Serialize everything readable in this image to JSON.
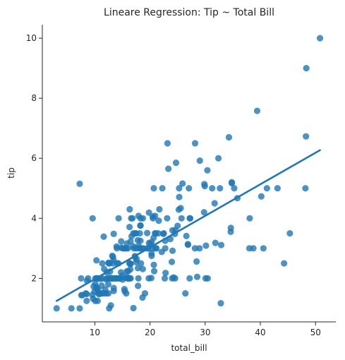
{
  "chart_data": {
    "type": "scatter",
    "title": "Lineare Regression: Tip ~ Total Bill",
    "xlabel": "total_bill",
    "ylabel": "tip",
    "xlim": [
      0.48,
      53.68
    ],
    "ylim": [
      0.55,
      10.45
    ],
    "xticks": [
      10,
      20,
      30,
      40,
      50
    ],
    "yticks": [
      2,
      4,
      6,
      8,
      10
    ],
    "grid": false,
    "colors": {
      "points": "#1f77b4",
      "line": "#1f77b4",
      "axis": "#262626"
    },
    "regression_line": {
      "x": [
        3.07,
        50.81
      ],
      "y": [
        1.25,
        6.27
      ]
    },
    "points": [
      [
        16.99,
        1.01
      ],
      [
        10.34,
        1.66
      ],
      [
        21.01,
        3.5
      ],
      [
        23.68,
        3.31
      ],
      [
        24.59,
        3.61
      ],
      [
        25.29,
        4.71
      ],
      [
        8.77,
        2.0
      ],
      [
        26.88,
        3.12
      ],
      [
        15.04,
        1.96
      ],
      [
        14.78,
        3.23
      ],
      [
        10.27,
        1.71
      ],
      [
        35.26,
        5.0
      ],
      [
        15.42,
        1.57
      ],
      [
        18.43,
        3.0
      ],
      [
        14.83,
        3.02
      ],
      [
        21.58,
        3.92
      ],
      [
        10.33,
        1.67
      ],
      [
        16.29,
        3.71
      ],
      [
        16.97,
        3.5
      ],
      [
        20.65,
        3.35
      ],
      [
        17.92,
        4.08
      ],
      [
        20.29,
        2.75
      ],
      [
        15.77,
        2.23
      ],
      [
        39.42,
        7.58
      ],
      [
        19.82,
        3.18
      ],
      [
        17.81,
        2.34
      ],
      [
        13.37,
        2.0
      ],
      [
        12.69,
        2.0
      ],
      [
        21.7,
        4.3
      ],
      [
        19.65,
        3.0
      ],
      [
        9.55,
        1.45
      ],
      [
        18.35,
        2.5
      ],
      [
        15.06,
        3.0
      ],
      [
        20.69,
        2.45
      ],
      [
        17.78,
        3.27
      ],
      [
        24.06,
        3.6
      ],
      [
        16.31,
        2.0
      ],
      [
        16.93,
        3.07
      ],
      [
        18.69,
        2.31
      ],
      [
        31.27,
        5.0
      ],
      [
        16.04,
        2.24
      ],
      [
        17.46,
        2.54
      ],
      [
        13.94,
        3.06
      ],
      [
        9.68,
        1.32
      ],
      [
        30.4,
        5.6
      ],
      [
        18.29,
        3.0
      ],
      [
        22.23,
        5.0
      ],
      [
        32.4,
        6.0
      ],
      [
        28.55,
        2.05
      ],
      [
        18.04,
        3.0
      ],
      [
        12.54,
        2.5
      ],
      [
        10.29,
        2.6
      ],
      [
        34.81,
        5.2
      ],
      [
        9.94,
        1.56
      ],
      [
        25.56,
        4.34
      ],
      [
        19.49,
        3.51
      ],
      [
        38.01,
        3.0
      ],
      [
        26.41,
        1.5
      ],
      [
        11.24,
        1.76
      ],
      [
        48.27,
        6.73
      ],
      [
        20.29,
        3.21
      ],
      [
        13.81,
        2.0
      ],
      [
        11.02,
        1.98
      ],
      [
        18.29,
        3.76
      ],
      [
        17.59,
        2.64
      ],
      [
        20.08,
        3.15
      ],
      [
        16.45,
        2.47
      ],
      [
        3.07,
        1.0
      ],
      [
        20.23,
        2.01
      ],
      [
        15.01,
        2.09
      ],
      [
        12.02,
        1.97
      ],
      [
        17.07,
        3.0
      ],
      [
        26.86,
        3.14
      ],
      [
        25.28,
        5.0
      ],
      [
        14.73,
        2.2
      ],
      [
        10.51,
        1.25
      ],
      [
        17.92,
        3.08
      ],
      [
        27.2,
        4.0
      ],
      [
        22.76,
        3.0
      ],
      [
        17.29,
        2.71
      ],
      [
        19.44,
        3.0
      ],
      [
        16.66,
        3.4
      ],
      [
        10.07,
        1.83
      ],
      [
        32.68,
        5.0
      ],
      [
        15.98,
        2.03
      ],
      [
        34.83,
        5.17
      ],
      [
        13.03,
        2.0
      ],
      [
        18.28,
        4.0
      ],
      [
        24.71,
        5.85
      ],
      [
        21.16,
        3.0
      ],
      [
        28.97,
        3.0
      ],
      [
        22.49,
        3.5
      ],
      [
        5.75,
        1.0
      ],
      [
        16.32,
        4.3
      ],
      [
        22.75,
        3.25
      ],
      [
        40.17,
        4.73
      ],
      [
        27.28,
        4.0
      ],
      [
        12.03,
        1.5
      ],
      [
        21.01,
        3.0
      ],
      [
        12.46,
        1.5
      ],
      [
        11.35,
        2.5
      ],
      [
        15.38,
        3.0
      ],
      [
        44.3,
        2.5
      ],
      [
        22.42,
        3.48
      ],
      [
        20.92,
        4.08
      ],
      [
        15.36,
        1.64
      ],
      [
        20.49,
        4.06
      ],
      [
        25.21,
        4.29
      ],
      [
        18.24,
        3.76
      ],
      [
        14.31,
        4.0
      ],
      [
        14.0,
        3.0
      ],
      [
        7.25,
        1.0
      ],
      [
        38.07,
        4.0
      ],
      [
        23.95,
        2.55
      ],
      [
        25.71,
        4.0
      ],
      [
        17.31,
        3.5
      ],
      [
        29.93,
        5.07
      ],
      [
        10.65,
        1.5
      ],
      [
        12.43,
        1.8
      ],
      [
        24.08,
        2.92
      ],
      [
        11.69,
        2.31
      ],
      [
        13.42,
        1.68
      ],
      [
        14.26,
        2.5
      ],
      [
        15.95,
        2.0
      ],
      [
        12.48,
        2.52
      ],
      [
        29.8,
        4.2
      ],
      [
        8.52,
        1.48
      ],
      [
        14.52,
        2.0
      ],
      [
        11.38,
        2.0
      ],
      [
        22.82,
        2.18
      ],
      [
        19.08,
        1.5
      ],
      [
        20.27,
        2.83
      ],
      [
        11.17,
        1.5
      ],
      [
        12.26,
        2.0
      ],
      [
        18.26,
        3.25
      ],
      [
        8.51,
        1.25
      ],
      [
        10.33,
        2.0
      ],
      [
        14.15,
        2.0
      ],
      [
        16.0,
        2.0
      ],
      [
        13.16,
        2.75
      ],
      [
        17.47,
        3.5
      ],
      [
        34.3,
        6.7
      ],
      [
        41.19,
        5.0
      ],
      [
        27.05,
        5.0
      ],
      [
        16.43,
        2.3
      ],
      [
        8.35,
        1.5
      ],
      [
        18.64,
        1.36
      ],
      [
        11.87,
        1.63
      ],
      [
        9.78,
        1.73
      ],
      [
        7.51,
        2.0
      ],
      [
        14.07,
        2.5
      ],
      [
        13.13,
        2.0
      ],
      [
        17.26,
        2.74
      ],
      [
        24.55,
        2.0
      ],
      [
        19.77,
        2.0
      ],
      [
        29.85,
        5.14
      ],
      [
        48.17,
        5.0
      ],
      [
        25.0,
        3.75
      ],
      [
        13.39,
        2.61
      ],
      [
        16.49,
        2.0
      ],
      [
        21.5,
        3.5
      ],
      [
        12.66,
        2.5
      ],
      [
        16.21,
        2.0
      ],
      [
        13.81,
        2.0
      ],
      [
        17.51,
        3.0
      ],
      [
        24.52,
        3.48
      ],
      [
        20.76,
        2.24
      ],
      [
        31.71,
        4.5
      ],
      [
        10.59,
        1.61
      ],
      [
        10.63,
        2.0
      ],
      [
        50.81,
        10.0
      ],
      [
        15.81,
        3.16
      ],
      [
        7.25,
        5.15
      ],
      [
        31.85,
        3.18
      ],
      [
        16.82,
        4.0
      ],
      [
        32.9,
        3.11
      ],
      [
        17.89,
        2.0
      ],
      [
        14.48,
        2.0
      ],
      [
        9.6,
        4.0
      ],
      [
        34.63,
        3.55
      ],
      [
        34.65,
        3.68
      ],
      [
        23.33,
        5.65
      ],
      [
        45.35,
        3.5
      ],
      [
        23.17,
        6.5
      ],
      [
        40.55,
        3.0
      ],
      [
        20.69,
        5.0
      ],
      [
        20.9,
        3.5
      ],
      [
        30.46,
        2.0
      ],
      [
        18.15,
        3.5
      ],
      [
        23.1,
        4.0
      ],
      [
        15.69,
        1.5
      ],
      [
        19.81,
        4.19
      ],
      [
        28.44,
        2.56
      ],
      [
        15.48,
        2.02
      ],
      [
        16.58,
        4.0
      ],
      [
        7.56,
        1.44
      ],
      [
        10.34,
        2.0
      ],
      [
        43.11,
        5.0
      ],
      [
        13.0,
        2.0
      ],
      [
        13.51,
        2.0
      ],
      [
        18.71,
        4.0
      ],
      [
        12.74,
        2.01
      ],
      [
        13.0,
        2.0
      ],
      [
        16.4,
        2.5
      ],
      [
        20.53,
        4.0
      ],
      [
        16.47,
        3.23
      ],
      [
        26.59,
        3.41
      ],
      [
        38.73,
        3.0
      ],
      [
        24.27,
        2.03
      ],
      [
        12.76,
        2.23
      ],
      [
        30.06,
        2.0
      ],
      [
        25.89,
        5.16
      ],
      [
        48.33,
        9.0
      ],
      [
        13.27,
        2.5
      ],
      [
        28.17,
        6.5
      ],
      [
        12.9,
        1.1
      ],
      [
        28.15,
        3.0
      ],
      [
        11.59,
        1.5
      ],
      [
        7.74,
        1.44
      ],
      [
        30.14,
        3.09
      ],
      [
        12.16,
        2.2
      ],
      [
        13.42,
        3.48
      ],
      [
        8.58,
        1.92
      ],
      [
        15.98,
        3.0
      ],
      [
        13.42,
        1.58
      ],
      [
        16.27,
        2.5
      ],
      [
        10.09,
        2.0
      ],
      [
        20.45,
        3.0
      ],
      [
        13.28,
        2.72
      ],
      [
        22.12,
        2.88
      ],
      [
        24.01,
        2.0
      ],
      [
        15.69,
        3.0
      ],
      [
        11.61,
        3.39
      ],
      [
        10.77,
        1.47
      ],
      [
        15.53,
        3.0
      ],
      [
        10.07,
        1.25
      ],
      [
        12.6,
        1.0
      ],
      [
        32.83,
        1.17
      ],
      [
        35.83,
        4.67
      ],
      [
        29.03,
        5.92
      ],
      [
        27.18,
        2.0
      ],
      [
        22.67,
        2.0
      ],
      [
        17.82,
        1.75
      ],
      [
        18.78,
        3.0
      ]
    ]
  }
}
